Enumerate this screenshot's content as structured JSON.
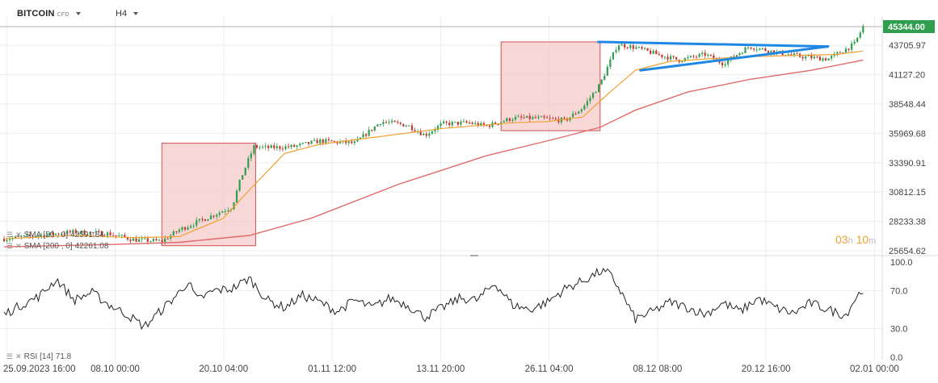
{
  "header": {
    "symbol": "BITCOIN",
    "instrument_type": "CFD",
    "timeframe": "H4"
  },
  "colors": {
    "candle_up": "#2f9e4e",
    "candle_down": "#c0392b",
    "sma50": "#f0a030",
    "sma200": "#e06a6a",
    "trendline": "#1e88e5",
    "zone_fill": "#f6c9c9",
    "zone_border": "#d05050",
    "price_tag": "#2f9e4e"
  },
  "indicators": {
    "sma50": {
      "label": "SMA [50 , 0]",
      "value": "42591.84"
    },
    "sma200": {
      "label": "SMA [200 , 0]",
      "value": "42261.08"
    },
    "rsi": {
      "label": "RSI [14]",
      "value": "71.8"
    }
  },
  "timer": {
    "hours": "03",
    "h_unit": "h",
    "minutes": "10",
    "m_unit": "m"
  },
  "chart_data": {
    "type": "candlestick",
    "price_axis": {
      "min": 25654.62,
      "max": 45344.0,
      "ticks": [
        "43705.97",
        "41127.20",
        "38548.44",
        "35969.68",
        "33390.91",
        "30812.15",
        "28233.38",
        "25654.62"
      ]
    },
    "current_price": "45344.00",
    "x_ticks": [
      "25.09.2023 16:00",
      "08.10 00:00",
      "20.10 04:00",
      "01.11 12:00",
      "13.11 20:00",
      "26.11 04:00",
      "08.12 08:00",
      "20.12 16:00",
      "02.01 00:00"
    ],
    "rsi_axis": {
      "min": 0,
      "max": 100,
      "ticks": [
        "100.0",
        "70.0",
        "30.0",
        "0.0"
      ]
    },
    "close_path": [
      [
        0,
        26700
      ],
      [
        0.04,
        27000
      ],
      [
        0.08,
        27300
      ],
      [
        0.12,
        27150
      ],
      [
        0.15,
        26600
      ],
      [
        0.18,
        26500
      ],
      [
        0.2,
        27500
      ],
      [
        0.23,
        28500
      ],
      [
        0.26,
        29500
      ],
      [
        0.27,
        32000
      ],
      [
        0.285,
        34800
      ],
      [
        0.3,
        34700
      ],
      [
        0.33,
        34800
      ],
      [
        0.36,
        35300
      ],
      [
        0.4,
        35100
      ],
      [
        0.43,
        37000
      ],
      [
        0.46,
        36700
      ],
      [
        0.48,
        35800
      ],
      [
        0.5,
        36800
      ],
      [
        0.53,
        36900
      ],
      [
        0.55,
        36600
      ],
      [
        0.58,
        37300
      ],
      [
        0.61,
        37300
      ],
      [
        0.64,
        37100
      ],
      [
        0.66,
        38200
      ],
      [
        0.68,
        40300
      ],
      [
        0.7,
        43800
      ],
      [
        0.72,
        43500
      ],
      [
        0.75,
        42800
      ],
      [
        0.77,
        42400
      ],
      [
        0.8,
        42900
      ],
      [
        0.82,
        42100
      ],
      [
        0.85,
        43600
      ],
      [
        0.88,
        43100
      ],
      [
        0.91,
        42700
      ],
      [
        0.94,
        42500
      ],
      [
        0.97,
        43800
      ],
      [
        0.98,
        45344
      ]
    ],
    "sma50_path": [
      [
        0,
        26700
      ],
      [
        0.08,
        27000
      ],
      [
        0.15,
        26800
      ],
      [
        0.2,
        26900
      ],
      [
        0.25,
        28500
      ],
      [
        0.28,
        31000
      ],
      [
        0.32,
        34200
      ],
      [
        0.36,
        35000
      ],
      [
        0.42,
        35600
      ],
      [
        0.5,
        36400
      ],
      [
        0.58,
        36900
      ],
      [
        0.62,
        37000
      ],
      [
        0.66,
        37400
      ],
      [
        0.69,
        39500
      ],
      [
        0.72,
        41500
      ],
      [
        0.76,
        42300
      ],
      [
        0.8,
        42500
      ],
      [
        0.85,
        42700
      ],
      [
        0.9,
        42800
      ],
      [
        0.95,
        42900
      ],
      [
        0.98,
        43200
      ]
    ],
    "sma200_path": [
      [
        0,
        26000
      ],
      [
        0.12,
        26200
      ],
      [
        0.2,
        26400
      ],
      [
        0.28,
        27000
      ],
      [
        0.35,
        28500
      ],
      [
        0.45,
        31500
      ],
      [
        0.55,
        34000
      ],
      [
        0.63,
        35500
      ],
      [
        0.68,
        36500
      ],
      [
        0.72,
        38000
      ],
      [
        0.78,
        39600
      ],
      [
        0.85,
        40700
      ],
      [
        0.92,
        41500
      ],
      [
        0.98,
        42400
      ]
    ],
    "zones": [
      {
        "x1": 0.18,
        "x2": 0.287,
        "y_top": 35100,
        "y_bottom": 26100
      },
      {
        "x1": 0.567,
        "x2": 0.68,
        "y_top": 44000,
        "y_bottom": 36200
      }
    ],
    "triangle": {
      "upper": [
        [
          0.678,
          44000
        ],
        [
          0.94,
          43600
        ]
      ],
      "lower": [
        [
          0.726,
          41500
        ],
        [
          0.94,
          43600
        ]
      ]
    },
    "rsi_path": [
      [
        0,
        45
      ],
      [
        0.02,
        55
      ],
      [
        0.04,
        64
      ],
      [
        0.06,
        82
      ],
      [
        0.08,
        60
      ],
      [
        0.1,
        68
      ],
      [
        0.12,
        55
      ],
      [
        0.14,
        45
      ],
      [
        0.16,
        32
      ],
      [
        0.18,
        50
      ],
      [
        0.2,
        68
      ],
      [
        0.21,
        80
      ],
      [
        0.22,
        60
      ],
      [
        0.24,
        70
      ],
      [
        0.26,
        72
      ],
      [
        0.28,
        83
      ],
      [
        0.3,
        60
      ],
      [
        0.32,
        52
      ],
      [
        0.34,
        65
      ],
      [
        0.36,
        58
      ],
      [
        0.38,
        48
      ],
      [
        0.4,
        60
      ],
      [
        0.42,
        52
      ],
      [
        0.44,
        62
      ],
      [
        0.46,
        55
      ],
      [
        0.48,
        42
      ],
      [
        0.5,
        52
      ],
      [
        0.52,
        62
      ],
      [
        0.54,
        60
      ],
      [
        0.56,
        78
      ],
      [
        0.58,
        55
      ],
      [
        0.6,
        50
      ],
      [
        0.62,
        58
      ],
      [
        0.64,
        72
      ],
      [
        0.66,
        80
      ],
      [
        0.68,
        90
      ],
      [
        0.69,
        88
      ],
      [
        0.7,
        75
      ],
      [
        0.72,
        40
      ],
      [
        0.74,
        48
      ],
      [
        0.76,
        58
      ],
      [
        0.78,
        52
      ],
      [
        0.8,
        45
      ],
      [
        0.82,
        57
      ],
      [
        0.84,
        48
      ],
      [
        0.86,
        62
      ],
      [
        0.88,
        52
      ],
      [
        0.9,
        46
      ],
      [
        0.92,
        57
      ],
      [
        0.94,
        50
      ],
      [
        0.96,
        44
      ],
      [
        0.97,
        60
      ],
      [
        0.98,
        72
      ]
    ]
  }
}
